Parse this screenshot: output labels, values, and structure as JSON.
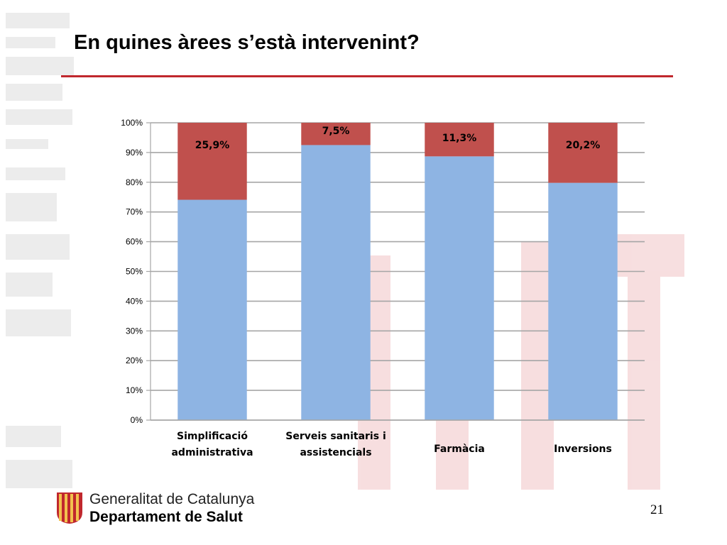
{
  "slide": {
    "title": "En quines àrees s’està intervenint?",
    "page_number": "21"
  },
  "footer": {
    "org_line1": "Generalitat de Catalunya",
    "org_line2": "Departament de Salut"
  },
  "colors": {
    "title_rule": "#c0272d",
    "series_base": "#8eb4e3",
    "series_top": "#c0504d",
    "grid": "#a6a6a6"
  },
  "icons": {
    "footer_logo": "generalitat-logo-icon",
    "watermark": "generalitat-watermark"
  },
  "chart_data": {
    "type": "bar",
    "stacked": true,
    "percent_stacked": true,
    "categories": [
      "Simplificació administrativa",
      "Serveis sanitaris i assistencials",
      "Farmàcia",
      "Inversions"
    ],
    "series": [
      {
        "values": [
          74.1,
          92.5,
          88.7,
          79.8
        ],
        "color": "#8eb4e3"
      },
      {
        "values": [
          25.9,
          7.5,
          11.3,
          20.2
        ],
        "color": "#c0504d"
      }
    ],
    "data_labels": [
      "25,9%",
      "7,5%",
      "11,3%",
      "20,2%"
    ],
    "y_ticks": [
      "0%",
      "10%",
      "20%",
      "30%",
      "40%",
      "50%",
      "60%",
      "70%",
      "80%",
      "90%",
      "100%"
    ],
    "ylim": [
      0,
      100
    ],
    "grid": true,
    "legend": "none",
    "xlabel": "",
    "ylabel": ""
  }
}
